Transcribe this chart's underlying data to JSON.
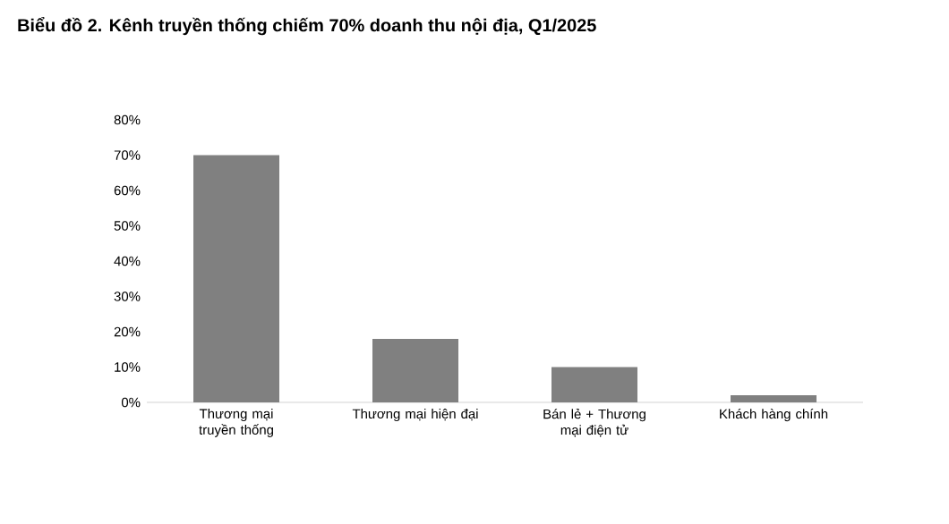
{
  "chart_data": {
    "type": "bar",
    "title": "Biểu đồ 2. Kênh truyền thống chiếm 70% doanh thu nội địa, Q1/2025",
    "categories": [
      "Thương mại truyền thống",
      "Thương mại hiện đại",
      "Bán lẻ + Thương mại điện tử",
      "Khách hàng chính"
    ],
    "values": [
      70,
      18,
      10,
      2
    ],
    "color": "#808080",
    "ylim": [
      0,
      80
    ],
    "yticks": [
      {
        "value": 0,
        "label": "0%"
      },
      {
        "value": 10,
        "label": "10%"
      },
      {
        "value": 20,
        "label": "20%"
      },
      {
        "value": 30,
        "label": "30%"
      },
      {
        "value": 40,
        "label": "40%"
      },
      {
        "value": 50,
        "label": "50%"
      },
      {
        "value": 60,
        "label": "60%"
      },
      {
        "value": 70,
        "label": "70%"
      },
      {
        "value": 80,
        "label": "80%"
      }
    ]
  }
}
